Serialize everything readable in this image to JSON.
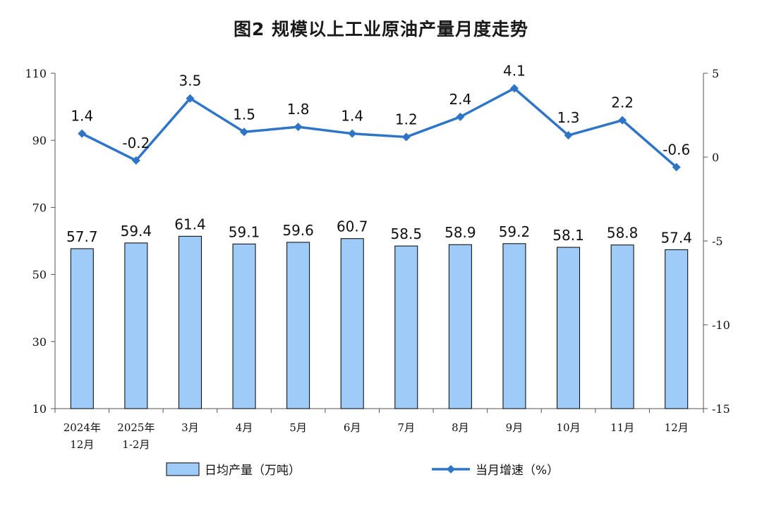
{
  "chart_data": {
    "type": "bar+line",
    "title": "图2  规模以上工业原油产量月度走势",
    "categories": [
      [
        "2024年",
        "12月"
      ],
      [
        "2025年",
        "1-2月"
      ],
      [
        "3月"
      ],
      [
        "4月"
      ],
      [
        "5月"
      ],
      [
        "6月"
      ],
      [
        "7月"
      ],
      [
        "8月"
      ],
      [
        "9月"
      ],
      [
        "10月"
      ],
      [
        "11月"
      ],
      [
        "12月"
      ]
    ],
    "series": [
      {
        "name": "日均产量（万吨）",
        "type": "bar",
        "axis": "left",
        "color": "#9ECBF7",
        "values": [
          57.7,
          59.4,
          61.4,
          59.1,
          59.6,
          60.7,
          58.5,
          58.9,
          59.2,
          58.1,
          58.8,
          57.4
        ]
      },
      {
        "name": "当月增速（%）",
        "type": "line",
        "axis": "right",
        "color": "#2E75C8",
        "values": [
          1.4,
          -0.2,
          3.5,
          1.5,
          1.8,
          1.4,
          1.2,
          2.4,
          4.1,
          1.3,
          2.2,
          -0.6
        ]
      }
    ],
    "y_left": {
      "ylim": [
        10,
        110
      ],
      "ticks": [
        10,
        30,
        50,
        70,
        90,
        110
      ]
    },
    "y_right": {
      "ylim": [
        -15,
        5
      ],
      "ticks": [
        -15,
        -10,
        -5,
        0,
        5
      ]
    },
    "grid": false,
    "legend": "bottom"
  }
}
